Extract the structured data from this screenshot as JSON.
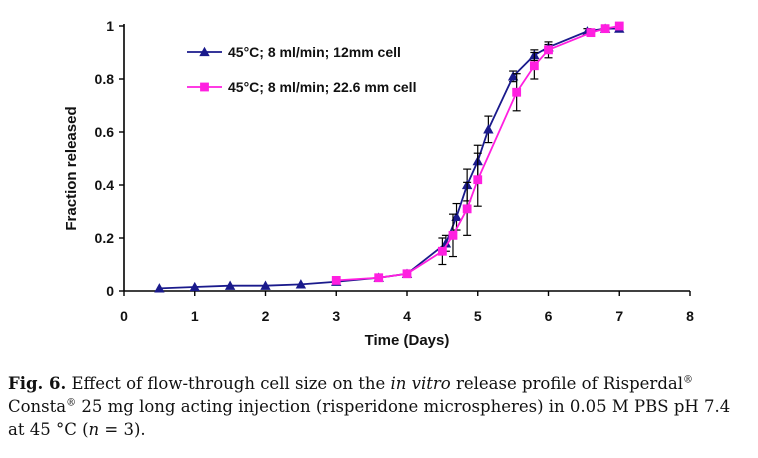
{
  "chart_data": {
    "type": "line",
    "title": "",
    "xlabel": "Time (Days)",
    "ylabel": "Fraction released",
    "xlim": [
      0,
      8
    ],
    "ylim": [
      0,
      1
    ],
    "xticks": [
      "0",
      "1",
      "2",
      "3",
      "4",
      "5",
      "6",
      "7",
      "8"
    ],
    "yticks": [
      "0",
      "0.2",
      "0.4",
      "0.6",
      "0.8",
      "1"
    ],
    "legend_position": "top-left",
    "grid": false,
    "series": [
      {
        "name": "45°C; 8 ml/min; 12mm cell",
        "color": "#1a1a8c",
        "marker": "triangle",
        "x": [
          0.5,
          1,
          1.5,
          2,
          2.5,
          3,
          3.6,
          4,
          4.55,
          4.7,
          4.85,
          5,
          5.15,
          5.5,
          5.8,
          6,
          6.55,
          6.8,
          7
        ],
        "y": [
          0.01,
          0.015,
          0.02,
          0.02,
          0.025,
          0.035,
          0.05,
          0.065,
          0.18,
          0.28,
          0.4,
          0.49,
          0.61,
          0.81,
          0.89,
          0.92,
          0.98,
          0.99,
          0.99
        ],
        "err": [
          0,
          0,
          0,
          0,
          0,
          0,
          0.01,
          0.01,
          0.03,
          0.05,
          0.06,
          0.06,
          0.05,
          0.02,
          0.02,
          0.01,
          0.01,
          0.01,
          0.01
        ]
      },
      {
        "name": "45°C; 8 ml/min; 22.6 mm cell",
        "color": "#ff1fe0",
        "marker": "square",
        "x": [
          3,
          3.6,
          4,
          4.5,
          4.65,
          4.85,
          5,
          5.55,
          5.8,
          6,
          6.6,
          6.8,
          7
        ],
        "y": [
          0.04,
          0.05,
          0.065,
          0.15,
          0.21,
          0.31,
          0.42,
          0.75,
          0.85,
          0.91,
          0.975,
          0.99,
          1.0
        ],
        "err": [
          0,
          0,
          0.01,
          0.05,
          0.08,
          0.1,
          0.1,
          0.07,
          0.05,
          0.03,
          0.01,
          0.01,
          0.01
        ]
      }
    ]
  },
  "caption": {
    "label": "Fig. 6.",
    "text_a": " Effect of flow-through cell size on the ",
    "text_italic": "in vitro",
    "text_b": " release profile of Risperdal",
    "sup1": "®",
    "text_c": " Consta",
    "sup2": "®",
    "text_d": " 25 mg long acting injection (risperidone microspheres) in 0.05 M PBS pH 7.4 at 45 °C (",
    "n_symbol": "n",
    "text_e": " = 3)."
  }
}
